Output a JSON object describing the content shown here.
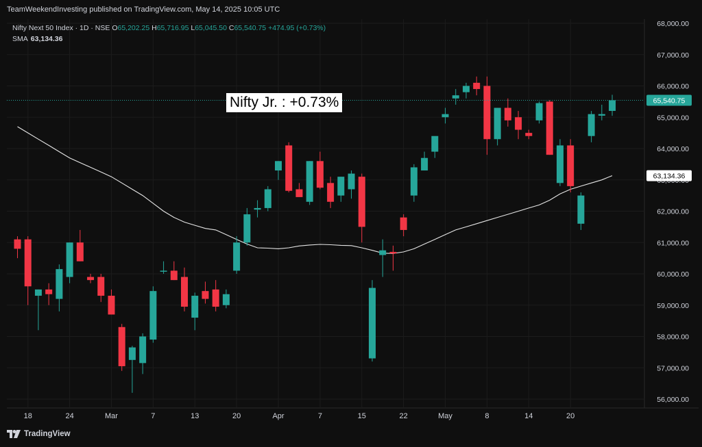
{
  "header": {
    "published": "TeamWeekendInvesting published on TradingView.com, May 14, 2025 10:05 UTC"
  },
  "legend": {
    "title": "Nifty Next 50 Index · 1D · NSE",
    "open_label": "O",
    "open": "65,202.25",
    "high_label": "H",
    "high": "65,716.95",
    "low_label": "L",
    "low": "65,045.50",
    "close_label": "C",
    "close": "65,540.75",
    "change": "+474.95 (+0.73%)",
    "sma_label": "SMA",
    "sma_value": "63,134.36"
  },
  "annotation": "Nifty Jr. : +0.73%",
  "footer": {
    "brand": "TradingView"
  },
  "colors": {
    "up": "#26a69a",
    "down": "#f23645",
    "sma": "#e6e6e6",
    "background": "#0f0f0f",
    "grid": "#1c1c1c"
  },
  "chart_data": {
    "type": "candlestick",
    "ylim": [
      56000,
      68000
    ],
    "y_ticks": [
      "56,000.00",
      "57,000.00",
      "58,000.00",
      "59,000.00",
      "60,000.00",
      "61,000.00",
      "62,000.00",
      "63,000.00",
      "64,000.00",
      "65,000.00",
      "66,000.00",
      "67,000.00",
      "68,000.00"
    ],
    "x_ticks": [
      {
        "label": "18",
        "index": 1
      },
      {
        "label": "24",
        "index": 5
      },
      {
        "label": "Mar",
        "index": 9
      },
      {
        "label": "7",
        "index": 13
      },
      {
        "label": "13",
        "index": 17
      },
      {
        "label": "20",
        "index": 21
      },
      {
        "label": "Apr",
        "index": 25
      },
      {
        "label": "7",
        "index": 29
      },
      {
        "label": "15",
        "index": 33
      },
      {
        "label": "22",
        "index": 37
      },
      {
        "label": "May",
        "index": 41
      },
      {
        "label": "8",
        "index": 45
      },
      {
        "label": "14",
        "index": 49
      },
      {
        "label": "20",
        "index": 53
      }
    ],
    "price_label": "65,540.75",
    "sma_label": "63,134.36",
    "candles": [
      {
        "o": 61100,
        "h": 61200,
        "l": 60500,
        "c": 60800
      },
      {
        "o": 61100,
        "h": 61200,
        "l": 59000,
        "c": 59600
      },
      {
        "o": 59300,
        "h": 59500,
        "l": 58200,
        "c": 59500
      },
      {
        "o": 59500,
        "h": 59700,
        "l": 59000,
        "c": 59350
      },
      {
        "o": 59200,
        "h": 60300,
        "l": 58800,
        "c": 60150
      },
      {
        "o": 59900,
        "h": 61000,
        "l": 59700,
        "c": 61000
      },
      {
        "o": 61000,
        "h": 61400,
        "l": 60400,
        "c": 60400
      },
      {
        "o": 59900,
        "h": 60000,
        "l": 59700,
        "c": 59800
      },
      {
        "o": 59900,
        "h": 60000,
        "l": 59100,
        "c": 59300
      },
      {
        "o": 59300,
        "h": 59500,
        "l": 58700,
        "c": 58700
      },
      {
        "o": 58300,
        "h": 58400,
        "l": 56900,
        "c": 57050
      },
      {
        "o": 57250,
        "h": 57700,
        "l": 56200,
        "c": 57650
      },
      {
        "o": 57150,
        "h": 58100,
        "l": 56800,
        "c": 58000
      },
      {
        "o": 57900,
        "h": 59600,
        "l": 57800,
        "c": 59450
      },
      {
        "o": 60100,
        "h": 60400,
        "l": 60000,
        "c": 60100
      },
      {
        "o": 60100,
        "h": 60400,
        "l": 59800,
        "c": 59800
      },
      {
        "o": 59900,
        "h": 60200,
        "l": 58800,
        "c": 58950
      },
      {
        "o": 58600,
        "h": 59400,
        "l": 58200,
        "c": 59300
      },
      {
        "o": 59450,
        "h": 59750,
        "l": 59050,
        "c": 59200
      },
      {
        "o": 59500,
        "h": 59800,
        "l": 58800,
        "c": 58950
      },
      {
        "o": 59000,
        "h": 59500,
        "l": 58900,
        "c": 59350
      },
      {
        "o": 60100,
        "h": 61200,
        "l": 60000,
        "c": 61000
      },
      {
        "o": 61000,
        "h": 62100,
        "l": 60900,
        "c": 61900
      },
      {
        "o": 62050,
        "h": 62350,
        "l": 61800,
        "c": 62100
      },
      {
        "o": 62100,
        "h": 62800,
        "l": 62000,
        "c": 62700
      },
      {
        "o": 63300,
        "h": 63600,
        "l": 63000,
        "c": 63600
      },
      {
        "o": 64100,
        "h": 64200,
        "l": 62600,
        "c": 62650
      },
      {
        "o": 62700,
        "h": 62900,
        "l": 62500,
        "c": 62450
      },
      {
        "o": 62300,
        "h": 63600,
        "l": 62200,
        "c": 63600
      },
      {
        "o": 63600,
        "h": 63900,
        "l": 62700,
        "c": 62750
      },
      {
        "o": 62900,
        "h": 63100,
        "l": 62100,
        "c": 62300
      },
      {
        "o": 62500,
        "h": 63100,
        "l": 62300,
        "c": 63100
      },
      {
        "o": 62700,
        "h": 63300,
        "l": 62400,
        "c": 63200
      },
      {
        "o": 63100,
        "h": 63200,
        "l": 61000,
        "c": 61500
      },
      {
        "o": 57300,
        "h": 59800,
        "l": 57200,
        "c": 59550
      },
      {
        "o": 60600,
        "h": 61100,
        "l": 59900,
        "c": 60750
      },
      {
        "o": 60700,
        "h": 60900,
        "l": 60100,
        "c": 60650
      },
      {
        "o": 61800,
        "h": 61900,
        "l": 61200,
        "c": 61400
      },
      {
        "o": 62500,
        "h": 63500,
        "l": 62300,
        "c": 63400
      },
      {
        "o": 63300,
        "h": 63900,
        "l": 63300,
        "c": 63700
      },
      {
        "o": 63900,
        "h": 64300,
        "l": 63700,
        "c": 64400
      },
      {
        "o": 65000,
        "h": 65300,
        "l": 64800,
        "c": 65100
      },
      {
        "o": 65600,
        "h": 65900,
        "l": 65400,
        "c": 65700
      },
      {
        "o": 65800,
        "h": 66100,
        "l": 65600,
        "c": 66000
      },
      {
        "o": 66100,
        "h": 66300,
        "l": 65700,
        "c": 65900
      },
      {
        "o": 66000,
        "h": 66300,
        "l": 63800,
        "c": 64300
      },
      {
        "o": 64300,
        "h": 65300,
        "l": 64100,
        "c": 65300
      },
      {
        "o": 65300,
        "h": 65600,
        "l": 64700,
        "c": 64900
      },
      {
        "o": 65000,
        "h": 65200,
        "l": 64300,
        "c": 64600
      },
      {
        "o": 64500,
        "h": 64600,
        "l": 64300,
        "c": 64400
      },
      {
        "o": 64900,
        "h": 65500,
        "l": 64800,
        "c": 65450
      },
      {
        "o": 65500,
        "h": 65550,
        "l": 63800,
        "c": 63800
      },
      {
        "o": 62900,
        "h": 64300,
        "l": 62800,
        "c": 64100
      },
      {
        "o": 64100,
        "h": 64300,
        "l": 62600,
        "c": 62800
      },
      {
        "o": 61600,
        "h": 62600,
        "l": 61400,
        "c": 62500
      },
      {
        "o": 64400,
        "h": 65200,
        "l": 64200,
        "c": 65100
      },
      {
        "o": 65050,
        "h": 65400,
        "l": 64900,
        "c": 65100
      },
      {
        "o": 65202.25,
        "h": 65716.95,
        "l": 65045.5,
        "c": 65540.75
      }
    ],
    "sma": [
      64700,
      64500,
      64300,
      64100,
      63900,
      63700,
      63550,
      63400,
      63250,
      63100,
      62900,
      62700,
      62500,
      62250,
      62000,
      61800,
      61650,
      61550,
      61450,
      61400,
      61250,
      61100,
      60950,
      60830,
      60820,
      60800,
      60830,
      60890,
      60920,
      60940,
      60930,
      60910,
      60900,
      60830,
      60750,
      60660,
      60650,
      60700,
      60800,
      60950,
      61100,
      61250,
      61400,
      61500,
      61600,
      61700,
      61800,
      61900,
      62000,
      62100,
      62200,
      62350,
      62550,
      62700,
      62800,
      62900,
      63000,
      63134.36
    ]
  }
}
